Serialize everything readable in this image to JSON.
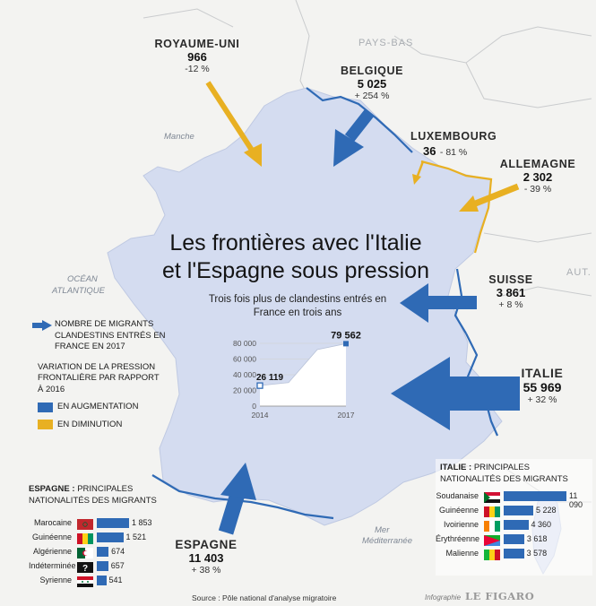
{
  "title": {
    "line1": "Les frontières avec l'Italie",
    "line2": "et l'Espagne sous pression"
  },
  "colors": {
    "increase": "#2f6ab5",
    "decrease": "#e8b022",
    "france": "#d4dcf0",
    "sea": "#f3f3f1"
  },
  "seas": {
    "manche": "Manche",
    "ocean1": "OCÉAN",
    "ocean2": "ATLANTIQUE",
    "mer1": "Mer",
    "mer2": "Méditerranée"
  },
  "neighbors": {
    "pays_bas": "PAYS-BAS",
    "aut": "AUT."
  },
  "borders": {
    "royaume_uni": {
      "name": "ROYAUME-UNI",
      "value": "966",
      "change": "-12 %"
    },
    "belgique": {
      "name": "BELGIQUE",
      "value": "5 025",
      "change": "+ 254 %"
    },
    "luxembourg": {
      "name": "LUXEMBOURG",
      "value": "36",
      "change": "- 81 %"
    },
    "allemagne": {
      "name": "ALLEMAGNE",
      "value": "2 302",
      "change": "- 39 %"
    },
    "suisse": {
      "name": "SUISSE",
      "value": "3 861",
      "change": "+ 8 %"
    },
    "italie": {
      "name": "ITALIE",
      "value": "55 969",
      "change": "+ 32 %"
    },
    "espagne": {
      "name": "ESPAGNE",
      "value": "11 403",
      "change": "+ 38 %"
    }
  },
  "legend": {
    "arrow_label": "NOMBRE DE MIGRANTS CLANDESTINS ENTRÉS EN FRANCE EN 2017",
    "variation_label": "VARIATION DE LA PRESSION FRONTALIÈRE PAR RAPPORT À 2016",
    "increase_label": "EN AUGMENTATION",
    "decrease_label": "EN DIMINUTION"
  },
  "chart_data": {
    "type": "area",
    "title": "Trois fois plus de clandestins entrés en France en trois ans",
    "x": [
      "2014",
      "2015",
      "2016",
      "2017"
    ],
    "x_tick_labels": [
      "2014",
      "2017"
    ],
    "values": [
      26119,
      30000,
      72000,
      79562
    ],
    "labeled_points": [
      {
        "x": "2014",
        "label": "26 119"
      },
      {
        "x": "2017",
        "label": "79 562"
      }
    ],
    "yticks": [
      "0",
      "20 000",
      "40 000",
      "60 000",
      "80 000"
    ],
    "ylim": [
      0,
      80000
    ],
    "grid": true
  },
  "italy_box": {
    "title_bold": "ITALIE :",
    "title_rest": " PRINCIPALES NATIONALITÉS DES MIGRANTS",
    "rows": [
      {
        "label": "Soudanaise",
        "value": "11 090",
        "num": 11090,
        "flag": "sudan"
      },
      {
        "label": "Guinéenne",
        "value": "5 228",
        "num": 5228,
        "flag": "guinea"
      },
      {
        "label": "Ivoirienne",
        "value": "4 360",
        "num": 4360,
        "flag": "ivory"
      },
      {
        "label": "Érythréenne",
        "value": "3 618",
        "num": 3618,
        "flag": "eritrea"
      },
      {
        "label": "Malienne",
        "value": "3 578",
        "num": 3578,
        "flag": "mali"
      }
    ]
  },
  "spain_box": {
    "title_bold": "ESPAGNE :",
    "title_rest": " PRINCIPALES NATIONALITÉS DES MIGRANTS",
    "rows": [
      {
        "label": "Marocaine",
        "value": "1 853",
        "num": 1853,
        "flag": "morocco"
      },
      {
        "label": "Guinéenne",
        "value": "1 521",
        "num": 1521,
        "flag": "guinea"
      },
      {
        "label": "Algérienne",
        "value": "674",
        "num": 674,
        "flag": "algeria"
      },
      {
        "label": "Indéterminée",
        "value": "657",
        "num": 657,
        "flag": "unknown",
        "flag_text": "?"
      },
      {
        "label": "Syrienne",
        "value": "541",
        "num": 541,
        "flag": "syria"
      }
    ]
  },
  "source": "Source : Pôle national d'analyse migratoire",
  "credit": {
    "prefix": "Infographie",
    "brand": "LE FIGARO"
  }
}
